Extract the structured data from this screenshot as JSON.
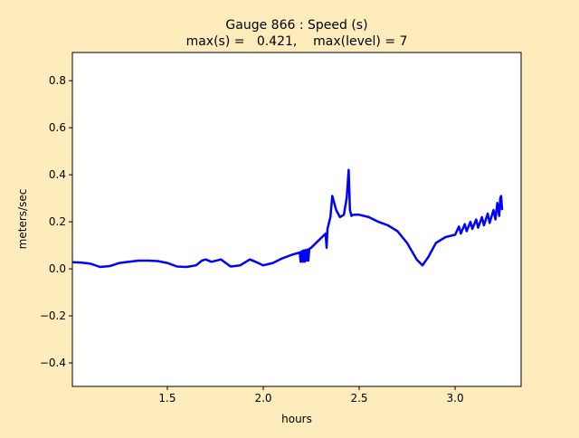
{
  "chart_data": {
    "type": "line",
    "title": "Gauge 866 : Speed (s)",
    "subtitle": "max(s) =   0.421,    max(level) = 7",
    "xlabel": "hours",
    "ylabel": "meters/sec",
    "xlim": [
      1.005,
      3.344
    ],
    "ylim": [
      -0.5,
      0.92
    ],
    "xticks": [
      1.5,
      2.0,
      2.5,
      3.0
    ],
    "yticks": [
      -0.4,
      -0.2,
      0.0,
      0.2,
      0.4,
      0.6,
      0.8
    ],
    "grid": false,
    "line_color": "#0000ff",
    "series": [
      {
        "x": [
          1.005,
          1.05,
          1.1,
          1.15,
          1.2,
          1.25,
          1.3,
          1.35,
          1.4,
          1.45,
          1.5,
          1.55,
          1.6,
          1.65,
          1.68,
          1.7,
          1.73,
          1.78,
          1.83,
          1.88,
          1.93,
          1.96,
          2.0,
          2.05,
          2.1,
          2.15,
          2.19,
          2.195,
          2.2,
          2.205,
          2.21,
          2.215,
          2.22,
          2.225,
          2.23,
          2.235,
          2.24,
          2.25,
          2.3,
          2.325,
          2.33,
          2.335,
          2.35,
          2.36,
          2.38,
          2.4,
          2.42,
          2.435,
          2.445,
          2.452,
          2.46,
          2.47,
          2.5,
          2.55,
          2.6,
          2.65,
          2.7,
          2.75,
          2.8,
          2.83,
          2.86,
          2.9,
          2.95,
          3.0,
          3.02,
          3.03,
          3.05,
          3.06,
          3.08,
          3.09,
          3.11,
          3.12,
          3.14,
          3.15,
          3.17,
          3.18,
          3.2,
          3.21,
          3.22,
          3.23,
          3.235,
          3.24,
          3.245
        ],
        "y": [
          0.028,
          0.027,
          0.022,
          0.008,
          0.012,
          0.025,
          0.03,
          0.035,
          0.035,
          0.033,
          0.025,
          0.01,
          0.008,
          0.015,
          0.035,
          0.04,
          0.03,
          0.04,
          0.01,
          0.015,
          0.04,
          0.03,
          0.015,
          0.025,
          0.045,
          0.06,
          0.07,
          0.03,
          0.075,
          0.03,
          0.078,
          0.03,
          0.08,
          0.035,
          0.082,
          0.035,
          0.085,
          0.09,
          0.13,
          0.15,
          0.09,
          0.17,
          0.22,
          0.31,
          0.25,
          0.22,
          0.23,
          0.3,
          0.421,
          0.25,
          0.225,
          0.23,
          0.23,
          0.22,
          0.2,
          0.185,
          0.16,
          0.11,
          0.04,
          0.015,
          0.05,
          0.11,
          0.135,
          0.145,
          0.18,
          0.15,
          0.19,
          0.16,
          0.2,
          0.17,
          0.21,
          0.175,
          0.22,
          0.185,
          0.235,
          0.195,
          0.25,
          0.21,
          0.28,
          0.225,
          0.3,
          0.31,
          0.25
        ]
      }
    ]
  }
}
